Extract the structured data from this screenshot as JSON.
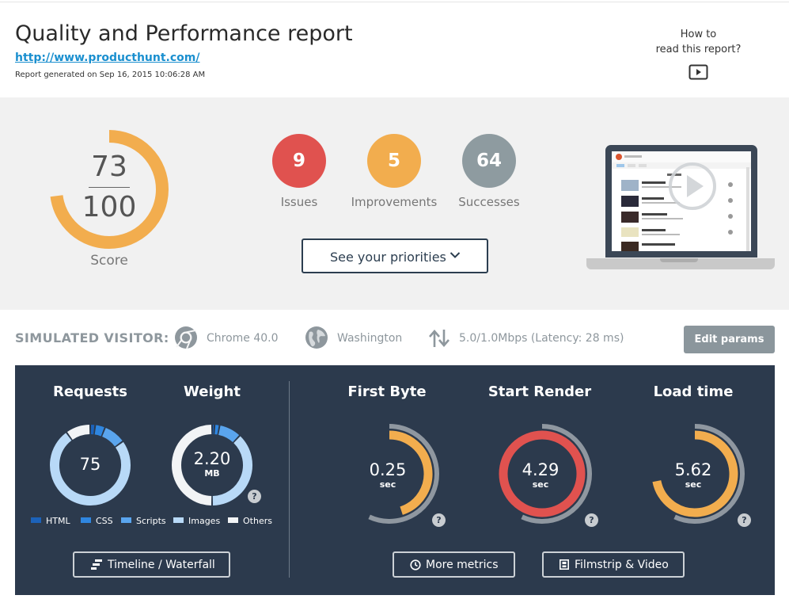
{
  "header": {
    "title": "Quality and Performance report",
    "url": "http://www.producthunt.com/",
    "generated": "Report generated on Sep 16, 2015 10:06:28 AM",
    "howto_line1": "How to",
    "howto_line2": "read this report?"
  },
  "score": {
    "value": "73",
    "max": "100",
    "fraction": 0.73,
    "label": "Score",
    "color": "#f2ad4e"
  },
  "counts": [
    {
      "value": "9",
      "label": "Issues",
      "color": "#e0524f"
    },
    {
      "value": "5",
      "label": "Improvements",
      "color": "#f2ad4e"
    },
    {
      "value": "64",
      "label": "Successes",
      "color": "#8e9ba0"
    }
  ],
  "priorities_label": "See your priorities",
  "visitor": {
    "title": "SIMULATED VISITOR:",
    "browser": "Chrome 40.0",
    "location": "Washington",
    "connection": "5.0/1.0Mbps (Latency: 28 ms)",
    "edit_label": "Edit params"
  },
  "metrics": {
    "requests": {
      "title": "Requests",
      "value": "75"
    },
    "weight": {
      "title": "Weight",
      "value": "2.20",
      "unit": "MB"
    },
    "first_byte": {
      "title": "First Byte",
      "value": "0.25",
      "unit": "sec",
      "fraction": 0.45,
      "color": "#f2ad4e"
    },
    "start_render": {
      "title": "Start Render",
      "value": "4.29",
      "unit": "sec",
      "fraction": 1.0,
      "color": "#e0524f"
    },
    "load_time": {
      "title": "Load time",
      "value": "5.62",
      "unit": "sec",
      "fraction": 0.72,
      "color": "#f2ad4e"
    },
    "legend": [
      {
        "label": "HTML",
        "color": "#1c62b9"
      },
      {
        "label": "CSS",
        "color": "#2f86e0"
      },
      {
        "label": "Scripts",
        "color": "#5aa5ee"
      },
      {
        "label": "Images",
        "color": "#b8d9f7"
      },
      {
        "label": "Others",
        "color": "#f2f4f6"
      }
    ],
    "requests_breakdown": [
      {
        "type": "HTML",
        "fraction": 0.02
      },
      {
        "type": "CSS",
        "fraction": 0.04
      },
      {
        "type": "Scripts",
        "fraction": 0.09
      },
      {
        "type": "Images",
        "fraction": 0.75
      },
      {
        "type": "Others",
        "fraction": 0.1
      }
    ],
    "weight_breakdown": [
      {
        "type": "HTML",
        "fraction": 0.01
      },
      {
        "type": "CSS",
        "fraction": 0.02
      },
      {
        "type": "Scripts",
        "fraction": 0.09
      },
      {
        "type": "Images",
        "fraction": 0.38
      },
      {
        "type": "Others",
        "fraction": 0.5
      }
    ],
    "help_glyph": "?",
    "timeline_label": "Timeline / Waterfall",
    "more_label": "More metrics",
    "filmstrip_label": "Filmstrip & Video"
  },
  "colors": {
    "panel": "#2c3a4d",
    "track": "#8f97a0",
    "accent_link": "#1a8fcf"
  }
}
